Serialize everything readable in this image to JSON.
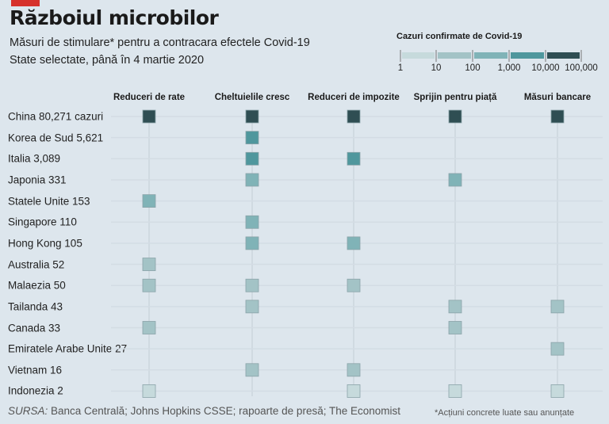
{
  "header": {
    "title": "Războiul microbilor",
    "subtitle": "Măsuri de stimulare* pentru a contracara efectele Covid-19",
    "subtitle2": "State selectate, până în 4 martie 2020"
  },
  "footer": {
    "source_label": "SURSA:",
    "source": " Banca Centrală; Johns Hopkins CSSE; rapoarte de presă; The Economist",
    "note": "*Acțiuni concrete luate sau anunțate"
  },
  "chart_data": {
    "type": "heatmap",
    "title": "Războiul microbilor",
    "columns": [
      "Reduceri de rate",
      "Cheltuielile cresc",
      "Reduceri de impozite",
      "Sprijin pentru piață",
      "Măsuri bancare"
    ],
    "rows": [
      {
        "label": "China 80,271 cazuri",
        "cases": 80271,
        "measures": [
          1,
          1,
          1,
          1,
          1
        ]
      },
      {
        "label": "Korea de Sud 5,621",
        "cases": 5621,
        "measures": [
          0,
          1,
          0,
          0,
          0
        ]
      },
      {
        "label": "Italia 3,089",
        "cases": 3089,
        "measures": [
          0,
          1,
          1,
          0,
          0
        ]
      },
      {
        "label": "Japonia 331",
        "cases": 331,
        "measures": [
          0,
          1,
          0,
          1,
          0
        ]
      },
      {
        "label": "Statele Unite 153",
        "cases": 153,
        "measures": [
          1,
          0,
          0,
          0,
          0
        ]
      },
      {
        "label": "Singapore 110",
        "cases": 110,
        "measures": [
          0,
          1,
          0,
          0,
          0
        ]
      },
      {
        "label": "Hong Kong 105",
        "cases": 105,
        "measures": [
          0,
          1,
          1,
          0,
          0
        ]
      },
      {
        "label": "Australia 52",
        "cases": 52,
        "measures": [
          1,
          0,
          0,
          0,
          0
        ]
      },
      {
        "label": "Malaezia 50",
        "cases": 50,
        "measures": [
          1,
          1,
          1,
          0,
          0
        ]
      },
      {
        "label": "Tailanda 43",
        "cases": 43,
        "measures": [
          0,
          1,
          0,
          1,
          1
        ]
      },
      {
        "label": "Canada 33",
        "cases": 33,
        "measures": [
          1,
          0,
          0,
          1,
          0
        ]
      },
      {
        "label": "Emiratele Arabe Unite 27",
        "cases": 27,
        "measures": [
          0,
          0,
          0,
          0,
          1
        ]
      },
      {
        "label": "Vietnam 16",
        "cases": 16,
        "measures": [
          0,
          1,
          1,
          0,
          0
        ]
      },
      {
        "label": "Indonezia 2",
        "cases": 2,
        "measures": [
          1,
          0,
          1,
          1,
          1
        ]
      }
    ],
    "legend": {
      "title": "Cazuri confirmate de Covid-19",
      "ticks": [
        "1",
        "10",
        "100",
        "1,000",
        "10,000",
        "100,000"
      ],
      "colors": [
        "#c6dadc",
        "#a3c3c6",
        "#80b3b7",
        "#4f979d",
        "#2f4e53"
      ]
    }
  }
}
